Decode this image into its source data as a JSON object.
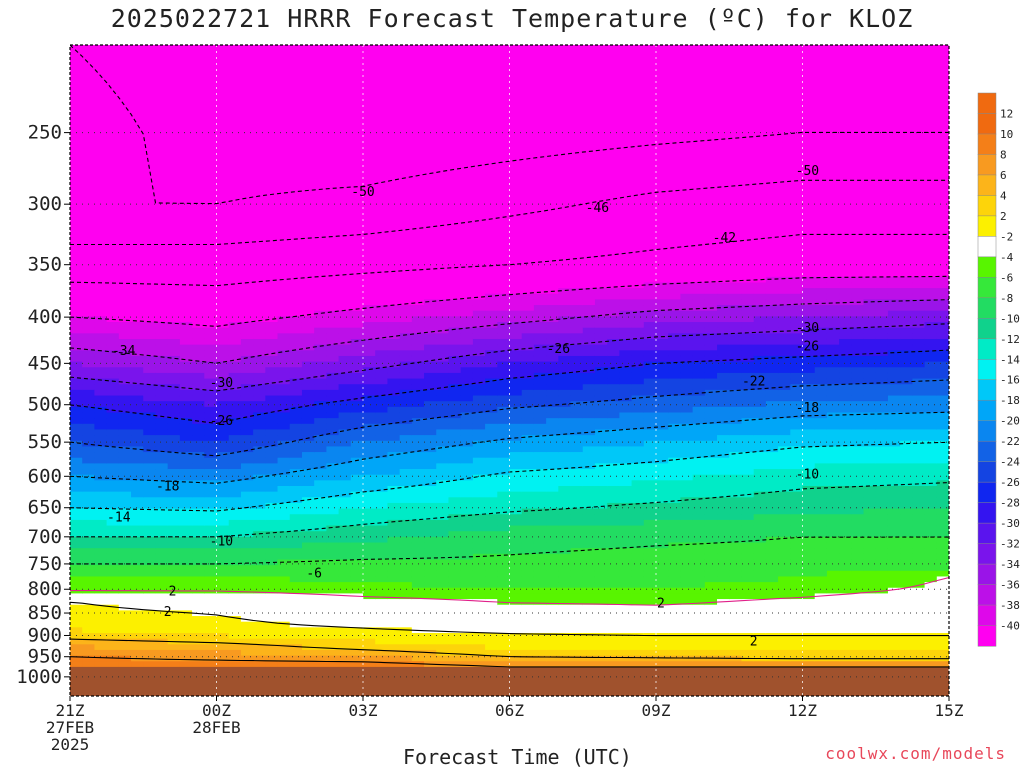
{
  "title": "2025022721 HRRR Forecast Temperature (ºC) for KLOZ",
  "credit": "coolwx.com/models",
  "chart_data": {
    "type": "heatmap",
    "title": "2025022721 HRRR Forecast Temperature (ºC) for KLOZ",
    "xlabel": "Forecast Time (UTC)",
    "ylabel": "",
    "x_ticks": [
      {
        "hour": 0,
        "lines": [
          "21Z",
          "27FEB",
          "2025"
        ]
      },
      {
        "hour": 3,
        "lines": [
          "00Z",
          "28FEB"
        ]
      },
      {
        "hour": 6,
        "lines": [
          "03Z"
        ]
      },
      {
        "hour": 9,
        "lines": [
          "06Z"
        ]
      },
      {
        "hour": 12,
        "lines": [
          "09Z"
        ]
      },
      {
        "hour": 15,
        "lines": [
          "12Z"
        ]
      },
      {
        "hour": 18,
        "lines": [
          "15Z"
        ]
      }
    ],
    "xlim": [
      0,
      18
    ],
    "y_axis": "pressure (hPa), log scale, inverted",
    "y_ticks": [
      250,
      300,
      350,
      400,
      450,
      500,
      550,
      600,
      650,
      700,
      750,
      800,
      850,
      900,
      950,
      1000
    ],
    "ylim": [
      1050,
      200
    ],
    "grid": true,
    "surface_pressure_hpa": 975,
    "colorbar": {
      "labels": [
        "12",
        "10",
        "8",
        "6",
        "4",
        "2",
        "-2",
        "-4",
        "-6",
        "-8",
        "-10",
        "-12",
        "-14",
        "-16",
        "-18",
        "-20",
        "-22",
        "-24",
        "-26",
        "-28",
        "-30",
        "-32",
        "-34",
        "-36",
        "-38",
        "-40"
      ],
      "colors": [
        "#f06a10",
        "#f47f18",
        "#f89a20",
        "#fcb41a",
        "#fdd40a",
        "#fcf000",
        "#ffffff",
        "#58f500",
        "#36e83a",
        "#22dc62",
        "#10d28c",
        "#00ebc6",
        "#00f2f2",
        "#00c8f8",
        "#00a6f8",
        "#0a86f0",
        "#1262e6",
        "#1444e2",
        "#1026f0",
        "#3414f0",
        "#5a14ee",
        "#7a14ec",
        "#9a14e8",
        "#bc10e8",
        "#de08ea",
        "#ff00f0"
      ]
    },
    "temperature_profile": {
      "pressures": [
        975,
        950,
        925,
        900,
        875,
        850,
        825,
        800,
        775,
        750,
        700,
        650,
        600,
        550,
        500,
        450,
        400,
        350,
        300,
        250,
        200
      ],
      "times": [
        0,
        3,
        6,
        9,
        12,
        15,
        18
      ],
      "temps": [
        [
          12.0,
          12.0,
          12.0,
          10.0,
          10.0,
          10.0,
          10.0
        ],
        [
          10.0,
          9.0,
          8.0,
          6.0,
          5.5,
          5.0,
          5.0
        ],
        [
          8.0,
          7.0,
          5.0,
          3.5,
          3.0,
          3.0,
          3.0
        ],
        [
          5.0,
          4.0,
          3.0,
          2.3,
          2.0,
          2.0,
          2.0
        ],
        [
          3.0,
          2.5,
          1.5,
          0.5,
          0.0,
          0.0,
          0.5
        ],
        [
          2.5,
          1.9,
          0.5,
          -0.5,
          -1.0,
          -0.5,
          0.0
        ],
        [
          2.0,
          1.0,
          -1.0,
          -2.2,
          -2.5,
          -1.5,
          -0.5
        ],
        [
          -2.5,
          -2.5,
          -3.5,
          -4.0,
          -4.0,
          -3.0,
          -1.5
        ],
        [
          -4.0,
          -4.0,
          -4.5,
          -5.0,
          -5.0,
          -4.0,
          -2.0
        ],
        [
          -6.0,
          -6.0,
          -5.5,
          -5.5,
          -5.0,
          -5.0,
          -5.0
        ],
        [
          -10.0,
          -10.0,
          -8.5,
          -7.0,
          -6.5,
          -6.0,
          -6.0
        ],
        [
          -14.0,
          -14.5,
          -12.0,
          -10.5,
          -9.5,
          -8.5,
          -8.0
        ],
        [
          -18.0,
          -19.0,
          -16.0,
          -13.5,
          -12.5,
          -11.0,
          -10.5
        ],
        [
          -22.0,
          -24.0,
          -20.0,
          -17.5,
          -16.0,
          -14.5,
          -14.0
        ],
        [
          -26.0,
          -28.0,
          -25.0,
          -22.5,
          -21.0,
          -19.5,
          -19.0
        ],
        [
          -32.0,
          -34.0,
          -31.0,
          -28.0,
          -26.0,
          -25.0,
          -24.0
        ],
        [
          -38.0,
          -39.0,
          -37.0,
          -35.0,
          -33.0,
          -32.0,
          -31.0
        ],
        [
          -44.0,
          -44.0,
          -43.0,
          -42.0,
          -41.0,
          -40.0,
          -40.0
        ],
        [
          -50.0,
          -50.0,
          -49.0,
          -47.0,
          -45.0,
          -44.0,
          -44.0
        ],
        [
          -48.0,
          -52.0,
          -53.0,
          -52.0,
          -51.0,
          -50.0,
          -50.0
        ],
        [
          -50.0,
          -53.0,
          -54.0,
          -55.0,
          -55.0,
          -54.0,
          -54.0
        ]
      ]
    },
    "contour_labels": [
      {
        "text": "-50",
        "hour": 6.0,
        "p": 290
      },
      {
        "text": "-50",
        "hour": 15.1,
        "p": 275
      },
      {
        "text": "-46",
        "hour": 10.8,
        "p": 302
      },
      {
        "text": "-42",
        "hour": 13.4,
        "p": 326
      },
      {
        "text": "-34",
        "hour": 1.1,
        "p": 435
      },
      {
        "text": "-30",
        "hour": 3.1,
        "p": 472
      },
      {
        "text": "-30",
        "hour": 15.1,
        "p": 410
      },
      {
        "text": "-26",
        "hour": 3.1,
        "p": 520
      },
      {
        "text": "-26",
        "hour": 10.0,
        "p": 433
      },
      {
        "text": "-26",
        "hour": 15.1,
        "p": 430
      },
      {
        "text": "-22",
        "hour": 14.0,
        "p": 470
      },
      {
        "text": "-18",
        "hour": 2.0,
        "p": 614
      },
      {
        "text": "-18",
        "hour": 15.1,
        "p": 503
      },
      {
        "text": "-14",
        "hour": 1.0,
        "p": 665
      },
      {
        "text": "-10",
        "hour": 3.1,
        "p": 707
      },
      {
        "text": "-10",
        "hour": 15.1,
        "p": 596
      },
      {
        "text": "-6",
        "hour": 5.0,
        "p": 767
      },
      {
        "text": "2",
        "hour": 2.1,
        "p": 803
      },
      {
        "text": "2",
        "hour": 2.0,
        "p": 846
      },
      {
        "text": "2",
        "hour": 12.1,
        "p": 827
      },
      {
        "text": "2",
        "hour": 14.0,
        "p": 911
      }
    ]
  }
}
